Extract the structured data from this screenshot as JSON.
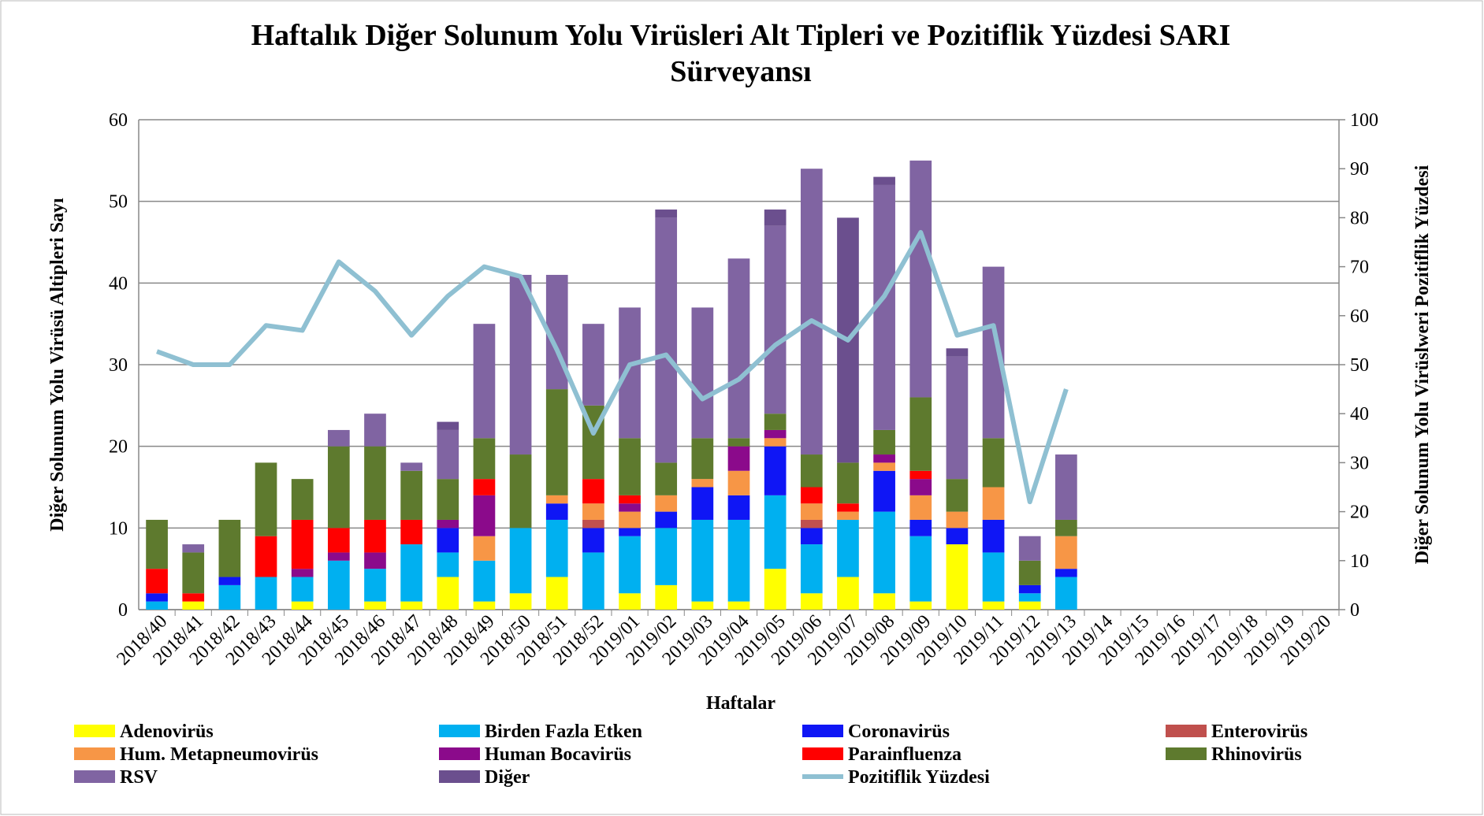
{
  "chart_data": {
    "type": "bar",
    "stacked": true,
    "title": "Haftalık Diğer Solunum Yolu Virüsleri Alt Tipleri ve Pozitiflik Yüzdesi SARI Sürveyansı",
    "xlabel": "Haftalar",
    "ylabel": "Diğer Solunum Yolu Virüsü Altipleri Sayı",
    "y2label": "Diğer Solunum Yolu Virüslweri Pozitiflik Yüzdesi",
    "categories": [
      "2018/40",
      "2018/41",
      "2018/42",
      "2018/43",
      "2018/44",
      "2018/45",
      "2018/46",
      "2018/47",
      "2018/48",
      "2018/49",
      "2018/50",
      "2018/51",
      "2018/52",
      "2019/01",
      "2019/02",
      "2019/03",
      "2019/04",
      "2019/05",
      "2019/06",
      "2019/07",
      "2019/08",
      "2019/09",
      "2019/10",
      "2019/11",
      "2019/12",
      "2019/13",
      "2019/14",
      "2019/15",
      "2019/16",
      "2019/17",
      "2019/18",
      "2019/19",
      "2019/20"
    ],
    "ylim": [
      0,
      60
    ],
    "yticks": [
      0,
      10,
      20,
      30,
      40,
      50,
      60
    ],
    "y2lim": [
      0,
      100
    ],
    "y2ticks": [
      0,
      10,
      20,
      30,
      40,
      50,
      60,
      70,
      80,
      90,
      100
    ],
    "grid": true,
    "series": [
      {
        "name": "Adenovirüs",
        "color": "#ffff00",
        "values": [
          0,
          1,
          0,
          0,
          1,
          0,
          1,
          1,
          4,
          1,
          2,
          4,
          0,
          2,
          3,
          1,
          1,
          5,
          2,
          4,
          2,
          1,
          8,
          1,
          1,
          0,
          null,
          null,
          null,
          null,
          null,
          null,
          null
        ]
      },
      {
        "name": "Birden Fazla Etken",
        "color": "#00b0f0",
        "values": [
          1,
          0,
          3,
          4,
          3,
          6,
          4,
          7,
          3,
          5,
          8,
          7,
          7,
          7,
          7,
          10,
          10,
          9,
          6,
          7,
          10,
          8,
          0,
          6,
          1,
          4,
          null,
          null,
          null,
          null,
          null,
          null,
          null
        ]
      },
      {
        "name": "Coronavirüs",
        "color": "#0f16f5",
        "values": [
          1,
          0,
          1,
          0,
          0,
          0,
          0,
          0,
          3,
          0,
          0,
          2,
          3,
          1,
          2,
          4,
          3,
          6,
          2,
          0,
          5,
          2,
          2,
          4,
          1,
          1,
          null,
          null,
          null,
          null,
          null,
          null,
          null
        ]
      },
      {
        "name": "Enterovirüs",
        "color": "#c0504d",
        "values": [
          0,
          0,
          0,
          0,
          0,
          0,
          0,
          0,
          0,
          0,
          0,
          0,
          1,
          0,
          0,
          0,
          0,
          0,
          1,
          0,
          0,
          0,
          0,
          0,
          0,
          0,
          null,
          null,
          null,
          null,
          null,
          null,
          null
        ]
      },
      {
        "name": "Hum. Metapneumovirüs",
        "color": "#f79646",
        "values": [
          0,
          0,
          0,
          0,
          0,
          0,
          0,
          0,
          0,
          3,
          0,
          1,
          2,
          2,
          2,
          1,
          3,
          1,
          2,
          1,
          1,
          3,
          2,
          4,
          0,
          4,
          null,
          null,
          null,
          null,
          null,
          null,
          null
        ]
      },
      {
        "name": "Human Bocavirüs",
        "color": "#8b0a8b",
        "values": [
          0,
          0,
          0,
          0,
          1,
          1,
          2,
          0,
          1,
          5,
          0,
          0,
          0,
          1,
          0,
          0,
          3,
          1,
          0,
          0,
          1,
          2,
          0,
          0,
          0,
          0,
          null,
          null,
          null,
          null,
          null,
          null,
          null
        ]
      },
      {
        "name": "Parainfluenza",
        "color": "#ff0000",
        "values": [
          3,
          1,
          0,
          5,
          6,
          3,
          4,
          3,
          0,
          2,
          0,
          0,
          3,
          1,
          0,
          0,
          0,
          0,
          2,
          1,
          0,
          1,
          0,
          0,
          0,
          0,
          null,
          null,
          null,
          null,
          null,
          null,
          null
        ]
      },
      {
        "name": "Rhinovirüs",
        "color": "#5e7a2e",
        "values": [
          6,
          5,
          7,
          9,
          5,
          10,
          9,
          6,
          5,
          5,
          9,
          13,
          9,
          7,
          4,
          5,
          1,
          2,
          4,
          5,
          3,
          9,
          4,
          6,
          3,
          2,
          null,
          null,
          null,
          null,
          null,
          null,
          null
        ]
      },
      {
        "name": "RSV",
        "color": "#8064a2",
        "values": [
          0,
          1,
          0,
          0,
          0,
          2,
          4,
          1,
          6,
          14,
          22,
          14,
          10,
          16,
          30,
          16,
          22,
          23,
          35,
          0,
          30,
          29,
          15,
          21,
          3,
          8,
          null,
          null,
          null,
          null,
          null,
          null,
          null
        ]
      },
      {
        "name": "Diğer",
        "color": "#6b4f8e",
        "values": [
          0,
          0,
          0,
          0,
          0,
          0,
          0,
          0,
          1,
          0,
          0,
          0,
          0,
          0,
          1,
          0,
          0,
          2,
          0,
          30,
          1,
          0,
          1,
          0,
          0,
          0,
          null,
          null,
          null,
          null,
          null,
          null,
          null
        ]
      },
      {
        "name": "Pozitiflik Yüzdesi",
        "color": "#8fc0d2",
        "type": "line",
        "axis": "y2",
        "values": [
          52.7,
          50,
          50,
          58,
          57,
          71,
          65,
          56,
          64,
          70,
          68,
          53,
          36,
          50,
          52,
          43,
          47,
          54,
          59,
          55,
          64,
          77,
          56,
          58,
          22,
          45,
          null,
          null,
          null,
          null,
          null,
          null,
          null
        ]
      }
    ]
  }
}
